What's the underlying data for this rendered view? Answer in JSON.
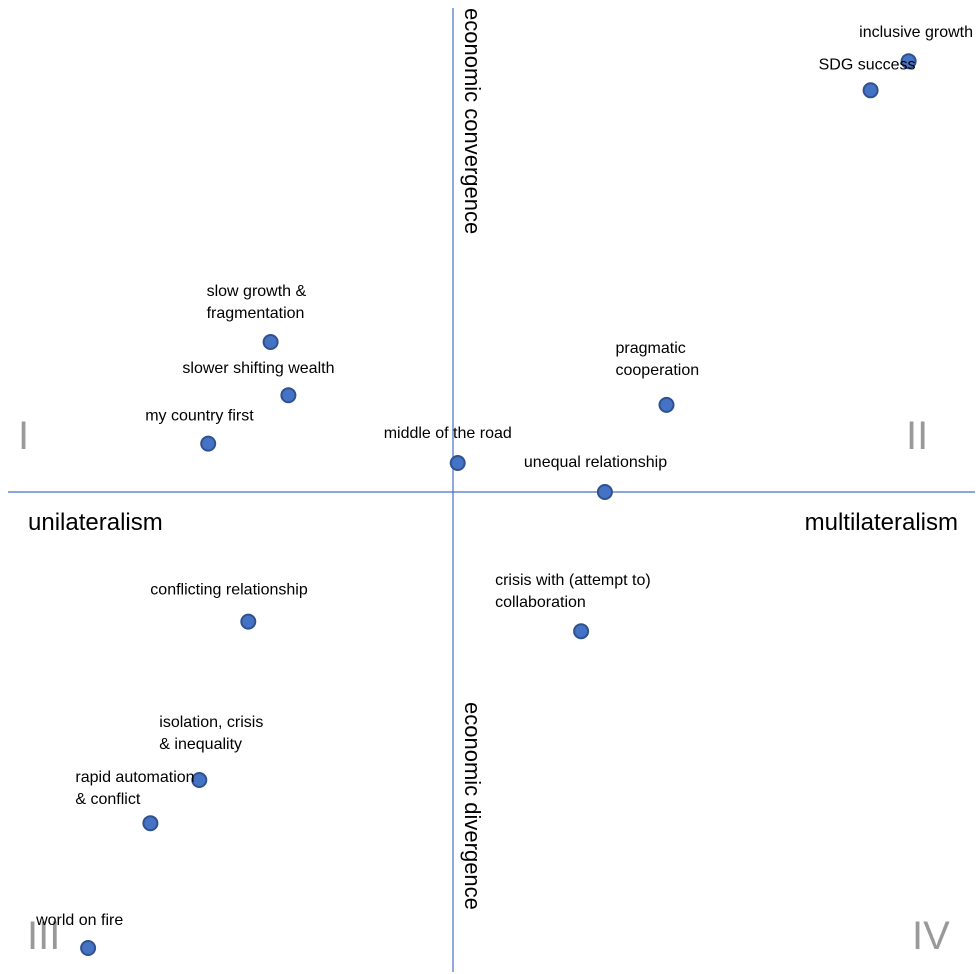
{
  "chart_data": {
    "type": "scatter",
    "title": "",
    "axes": {
      "x_negative_label": "unilateralism",
      "x_positive_label": "multilateralism",
      "y_positive_label": "economic convergence",
      "y_negative_label": "economic divergence"
    },
    "quadrant_labels": {
      "q1": "I",
      "q2": "II",
      "q3": "III",
      "q4": "IV"
    },
    "xlim": [
      -10,
      11
    ],
    "ylim": [
      -10,
      10
    ],
    "grid": false,
    "point_color": "#4472C4",
    "axis_color": "#4472C4",
    "points": [
      {
        "label": "inclusive growth",
        "x": 9.6,
        "y": 8.9
      },
      {
        "label": "SDG success",
        "x": 8.8,
        "y": 8.3
      },
      {
        "label": "slow growth & fragmentation",
        "x": -4.1,
        "y": 3.1
      },
      {
        "label": "slower shifting wealth",
        "x": -3.7,
        "y": 2.0
      },
      {
        "label": "pragmatic cooperation",
        "x": 4.5,
        "y": 1.8
      },
      {
        "label": "my country first",
        "x": -5.5,
        "y": 1.0
      },
      {
        "label": "middle of the road",
        "x": 0.1,
        "y": 0.6
      },
      {
        "label": "unequal relationship",
        "x": 3.2,
        "y": 0.0
      },
      {
        "label": "conflicting relationship",
        "x": -4.6,
        "y": -2.7
      },
      {
        "label": "crisis with (attempt to) collaboration",
        "x": 2.7,
        "y": -2.9
      },
      {
        "label": "isolation, crisis & inequality",
        "x": -5.7,
        "y": -6.0
      },
      {
        "label": "rapid automation & conflict",
        "x": -6.8,
        "y": -6.9
      },
      {
        "label": "world on fire",
        "x": -8.2,
        "y": -9.5
      }
    ]
  }
}
